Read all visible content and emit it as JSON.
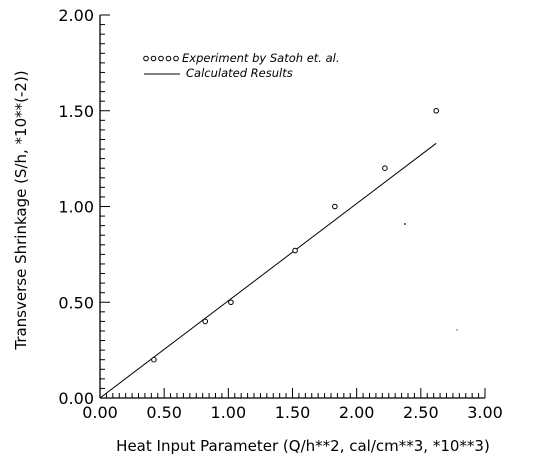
{
  "chart_data": {
    "type": "scatter",
    "xlabel": "Heat Input Parameter (Q/h**2, cal/cm**3, *10**3)",
    "ylabel": "Transverse Shrinkage (S/h, *10**(-2))",
    "xlim": [
      0,
      3
    ],
    "ylim": [
      0,
      2
    ],
    "x_ticks": [
      "0.00",
      "0.50",
      "1.00",
      "1.50",
      "2.00",
      "2.50",
      "3.00"
    ],
    "y_ticks": [
      "0.00",
      "0.50",
      "1.00",
      "1.50",
      "2.00"
    ],
    "grid": false,
    "legend_position": "top-left",
    "series": [
      {
        "name": "Experiment by Satoh et. al.",
        "kind": "scatter",
        "marker": "open-circle",
        "x": [
          0.42,
          0.82,
          1.02,
          1.52,
          1.83,
          2.22,
          2.62
        ],
        "y": [
          0.2,
          0.4,
          0.5,
          0.77,
          1.0,
          1.2,
          1.5
        ]
      },
      {
        "name": "Calculated Results",
        "kind": "line",
        "x": [
          0.0,
          2.62
        ],
        "y": [
          0.0,
          1.33
        ]
      }
    ]
  }
}
